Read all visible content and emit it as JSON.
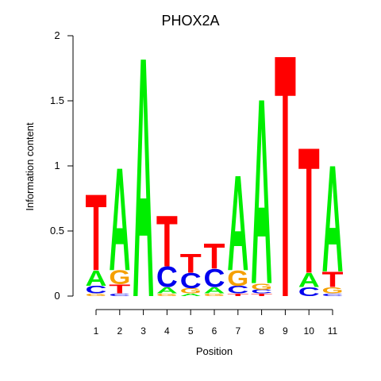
{
  "chart_data": {
    "type": "sequence-logo",
    "title": "PHOX2A",
    "xlabel": "Position",
    "ylabel": "Information content",
    "ylim": [
      0,
      2
    ],
    "y_ticks": [
      "0",
      "0.5",
      "1",
      "1.5",
      "2"
    ],
    "x_ticks": [
      "1",
      "2",
      "3",
      "4",
      "5",
      "6",
      "7",
      "8",
      "9",
      "10",
      "11"
    ],
    "colors": {
      "A": "#00ee00",
      "C": "#0000ee",
      "G": "#f5a000",
      "T": "#ff0000"
    },
    "positions": [
      {
        "pos": "1",
        "letters": [
          {
            "base": "G",
            "height": 0.02
          },
          {
            "base": "C",
            "height": 0.06
          },
          {
            "base": "A",
            "height": 0.12
          },
          {
            "base": "T",
            "height": 0.6
          }
        ]
      },
      {
        "pos": "2",
        "letters": [
          {
            "base": "C",
            "height": 0.02
          },
          {
            "base": "T",
            "height": 0.07
          },
          {
            "base": "G",
            "height": 0.11
          },
          {
            "base": "A",
            "height": 0.81
          }
        ]
      },
      {
        "pos": "3",
        "letters": [
          {
            "base": "A",
            "height": 1.89
          }
        ]
      },
      {
        "pos": "4",
        "letters": [
          {
            "base": "G",
            "height": 0.02
          },
          {
            "base": "A",
            "height": 0.05
          },
          {
            "base": "C",
            "height": 0.16
          },
          {
            "base": "T",
            "height": 0.4
          }
        ]
      },
      {
        "pos": "5",
        "letters": [
          {
            "base": "A",
            "height": 0.02
          },
          {
            "base": "G",
            "height": 0.04
          },
          {
            "base": "C",
            "height": 0.12
          },
          {
            "base": "T",
            "height": 0.15
          }
        ]
      },
      {
        "pos": "6",
        "letters": [
          {
            "base": "G",
            "height": 0.02
          },
          {
            "base": "A",
            "height": 0.05
          },
          {
            "base": "C",
            "height": 0.14
          },
          {
            "base": "T",
            "height": 0.2
          }
        ]
      },
      {
        "pos": "7",
        "letters": [
          {
            "base": "T",
            "height": 0.02
          },
          {
            "base": "C",
            "height": 0.06
          },
          {
            "base": "G",
            "height": 0.12
          },
          {
            "base": "A",
            "height": 0.75
          }
        ]
      },
      {
        "pos": "8",
        "letters": [
          {
            "base": "T",
            "height": 0.02
          },
          {
            "base": "C",
            "height": 0.03
          },
          {
            "base": "G",
            "height": 0.05
          },
          {
            "base": "A",
            "height": 1.46
          }
        ]
      },
      {
        "pos": "9",
        "letters": [
          {
            "base": "T",
            "height": 1.91
          }
        ]
      },
      {
        "pos": "10",
        "letters": [
          {
            "base": "C",
            "height": 0.07
          },
          {
            "base": "A",
            "height": 0.11
          },
          {
            "base": "T",
            "height": 0.99
          }
        ]
      },
      {
        "pos": "11",
        "letters": [
          {
            "base": "C",
            "height": 0.02
          },
          {
            "base": "G",
            "height": 0.05
          },
          {
            "base": "T",
            "height": 0.12
          },
          {
            "base": "A",
            "height": 0.84
          }
        ]
      }
    ]
  }
}
